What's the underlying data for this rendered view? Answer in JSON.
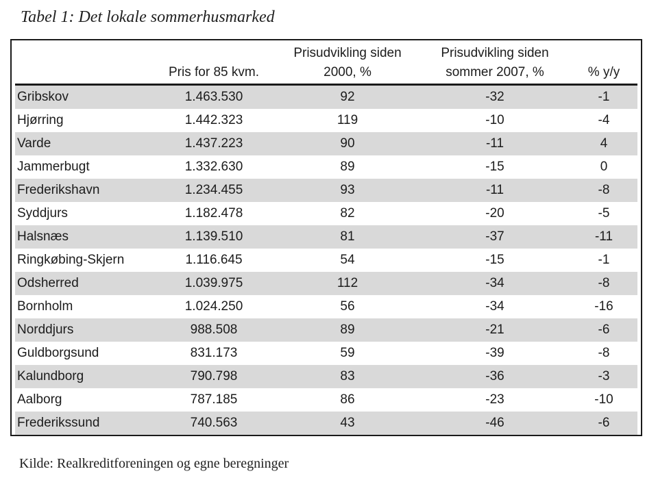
{
  "page": {
    "title": "Tabel 1: Det lokale sommerhusmarked",
    "source": "Kilde: Realkreditforeningen og egne beregninger"
  },
  "table": {
    "row_shade_color": "#d9d9d9",
    "columns": [
      {
        "id": "municipality",
        "header_line1": "",
        "header_line2": ""
      },
      {
        "id": "price_85sqm",
        "header_line1": "",
        "header_line2": "Pris for 85 kvm."
      },
      {
        "id": "change_since_2000",
        "header_line1": "Prisudvikling siden",
        "header_line2": "2000, %"
      },
      {
        "id": "change_since_summer_2007",
        "header_line1": "Prisudvikling siden",
        "header_line2": "sommer 2007, %"
      },
      {
        "id": "yoy",
        "header_line1": "",
        "header_line2": "% y/y"
      }
    ],
    "rows": [
      {
        "name": "Gribskov",
        "price": "1.463.530",
        "since2000": "92",
        "since2007": "-32",
        "yoy": "-1"
      },
      {
        "name": "Hjørring",
        "price": "1.442.323",
        "since2000": "119",
        "since2007": "-10",
        "yoy": "-4"
      },
      {
        "name": "Varde",
        "price": "1.437.223",
        "since2000": "90",
        "since2007": "-11",
        "yoy": "4"
      },
      {
        "name": "Jammerbugt",
        "price": "1.332.630",
        "since2000": "89",
        "since2007": "-15",
        "yoy": "0"
      },
      {
        "name": "Frederikshavn",
        "price": "1.234.455",
        "since2000": "93",
        "since2007": "-11",
        "yoy": "-8"
      },
      {
        "name": "Syddjurs",
        "price": "1.182.478",
        "since2000": "82",
        "since2007": "-20",
        "yoy": "-5"
      },
      {
        "name": "Halsnæs",
        "price": "1.139.510",
        "since2000": "81",
        "since2007": "-37",
        "yoy": "-11"
      },
      {
        "name": "Ringkøbing-Skjern",
        "price": "1.116.645",
        "since2000": "54",
        "since2007": "-15",
        "yoy": "-1"
      },
      {
        "name": "Odsherred",
        "price": "1.039.975",
        "since2000": "112",
        "since2007": "-34",
        "yoy": "-8"
      },
      {
        "name": "Bornholm",
        "price": "1.024.250",
        "since2000": "56",
        "since2007": "-34",
        "yoy": "-16"
      },
      {
        "name": "Norddjurs",
        "price": "988.508",
        "since2000": "89",
        "since2007": "-21",
        "yoy": "-6"
      },
      {
        "name": "Guldborgsund",
        "price": "831.173",
        "since2000": "59",
        "since2007": "-39",
        "yoy": "-8"
      },
      {
        "name": "Kalundborg",
        "price": "790.798",
        "since2000": "83",
        "since2007": "-36",
        "yoy": "-3"
      },
      {
        "name": "Aalborg",
        "price": "787.185",
        "since2000": "86",
        "since2007": "-23",
        "yoy": "-10"
      },
      {
        "name": "Frederikssund",
        "price": "740.563",
        "since2000": "43",
        "since2007": "-46",
        "yoy": "-6"
      }
    ]
  }
}
